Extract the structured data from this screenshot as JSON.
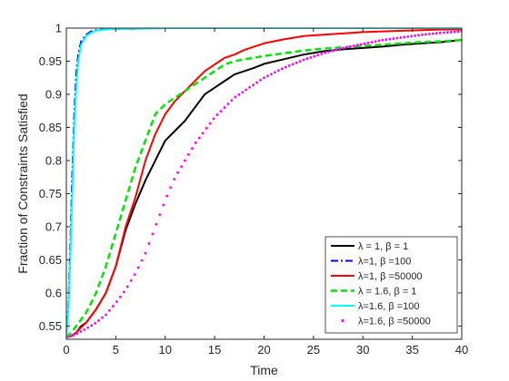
{
  "chart_data": {
    "type": "line",
    "title": "",
    "xlabel": "Time",
    "ylabel": "Fraction of Constraints Satisfied",
    "xlim": [
      0,
      40
    ],
    "ylim": [
      0.53,
      1.0
    ],
    "x_ticks": [
      0,
      5,
      10,
      15,
      20,
      25,
      30,
      35,
      40
    ],
    "y_ticks": [
      0.55,
      0.6,
      0.65,
      0.7,
      0.75,
      0.8,
      0.85,
      0.9,
      0.95,
      1
    ],
    "x_tick_labels": [
      "0",
      "5",
      "10",
      "15",
      "20",
      "25",
      "30",
      "35",
      "40"
    ],
    "y_tick_labels": [
      "0.55",
      "0.6",
      "0.65",
      "0.7",
      "0.75",
      "0.8",
      "0.85",
      "0.9",
      "0.95",
      "1"
    ],
    "grid": false,
    "legend_position": "bottom-right",
    "series": [
      {
        "name": "λ = 1, β = 1",
        "color": "#000000",
        "style": "solid",
        "x": [
          0,
          0.5,
          1,
          1.5,
          2,
          3,
          4,
          5,
          6,
          7,
          8,
          9,
          10,
          11,
          12,
          13,
          14,
          15,
          16,
          17,
          18,
          19,
          20,
          22,
          24,
          26,
          28,
          30,
          32,
          34,
          36,
          38,
          40
        ],
        "y": [
          0.533,
          0.535,
          0.54,
          0.55,
          0.555,
          0.575,
          0.6,
          0.64,
          0.695,
          0.735,
          0.77,
          0.8,
          0.83,
          0.845,
          0.86,
          0.88,
          0.9,
          0.91,
          0.92,
          0.93,
          0.935,
          0.94,
          0.946,
          0.953,
          0.96,
          0.965,
          0.968,
          0.97,
          0.972,
          0.975,
          0.977,
          0.979,
          0.982
        ]
      },
      {
        "name": "λ=1, β =100",
        "color": "#0000ff",
        "style": "dashdot",
        "x": [
          0,
          0.2,
          0.4,
          0.6,
          0.8,
          1.0,
          1.2,
          1.5,
          2,
          2.5,
          3,
          4,
          5,
          7,
          10,
          20,
          30,
          40
        ],
        "y": [
          0.533,
          0.58,
          0.67,
          0.78,
          0.87,
          0.93,
          0.96,
          0.98,
          0.99,
          0.995,
          0.997,
          0.998,
          0.999,
          0.999,
          1.0,
          1.0,
          1.0,
          1.0
        ]
      },
      {
        "name": "λ=1, β =50000",
        "color": "#ff0000",
        "style": "solid",
        "x": [
          0,
          0.5,
          1,
          1.5,
          2,
          3,
          4,
          5,
          6,
          7,
          8,
          9,
          10,
          11,
          12,
          13,
          14,
          15,
          16,
          17,
          18,
          19,
          20,
          22,
          24,
          26,
          28,
          30,
          32,
          34,
          36,
          38,
          40
        ],
        "y": [
          0.533,
          0.535,
          0.54,
          0.548,
          0.555,
          0.575,
          0.6,
          0.64,
          0.7,
          0.745,
          0.8,
          0.84,
          0.87,
          0.89,
          0.905,
          0.92,
          0.935,
          0.945,
          0.955,
          0.96,
          0.967,
          0.972,
          0.977,
          0.983,
          0.988,
          0.99,
          0.992,
          0.994,
          0.995,
          0.996,
          0.997,
          0.998,
          0.998
        ]
      },
      {
        "name": "λ = 1.6, β = 1",
        "color": "#00e600",
        "style": "dashed",
        "x": [
          0,
          0.5,
          1,
          1.5,
          2,
          3,
          4,
          5,
          6,
          7,
          8,
          9,
          10,
          11,
          12,
          13,
          14,
          15,
          16,
          17,
          18,
          19,
          20,
          22,
          24,
          26,
          28,
          30,
          32,
          34,
          36,
          38,
          40
        ],
        "y": [
          0.533,
          0.54,
          0.55,
          0.56,
          0.57,
          0.6,
          0.64,
          0.69,
          0.74,
          0.79,
          0.83,
          0.87,
          0.885,
          0.895,
          0.905,
          0.915,
          0.925,
          0.935,
          0.945,
          0.95,
          0.953,
          0.955,
          0.958,
          0.962,
          0.966,
          0.969,
          0.971,
          0.973,
          0.975,
          0.977,
          0.979,
          0.98,
          0.982
        ]
      },
      {
        "name": "λ=1.6, β =100",
        "color": "#00ffff",
        "style": "solid",
        "x": [
          0,
          0.2,
          0.4,
          0.6,
          0.8,
          1.0,
          1.2,
          1.5,
          2,
          2.5,
          3,
          4,
          5,
          7,
          10,
          20,
          30,
          40
        ],
        "y": [
          0.533,
          0.57,
          0.65,
          0.75,
          0.85,
          0.91,
          0.95,
          0.975,
          0.988,
          0.993,
          0.996,
          0.998,
          0.999,
          0.999,
          1.0,
          1.0,
          1.0,
          1.0
        ]
      },
      {
        "name": "λ=1.6, β =50000",
        "color": "#ff00ff",
        "style": "dotted",
        "x": [
          0,
          0.5,
          1,
          1.5,
          2,
          3,
          4,
          5,
          6,
          7,
          8,
          9,
          10,
          11,
          12,
          13,
          14,
          15,
          16,
          17,
          18,
          19,
          20,
          22,
          24,
          26,
          28,
          30,
          32,
          34,
          36,
          38,
          40
        ],
        "y": [
          0.533,
          0.535,
          0.538,
          0.542,
          0.546,
          0.555,
          0.567,
          0.585,
          0.605,
          0.63,
          0.66,
          0.7,
          0.74,
          0.775,
          0.8,
          0.825,
          0.845,
          0.865,
          0.88,
          0.895,
          0.905,
          0.915,
          0.925,
          0.94,
          0.952,
          0.962,
          0.97,
          0.976,
          0.982,
          0.986,
          0.99,
          0.993,
          0.995
        ]
      }
    ]
  }
}
